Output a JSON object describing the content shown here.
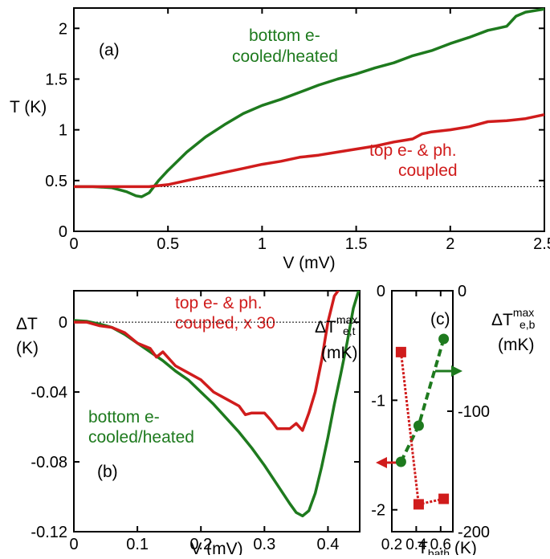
{
  "colors": {
    "green": "#1e7a1e",
    "red": "#d01c1c",
    "axis": "#000000"
  },
  "chart_data": [
    {
      "type": "line",
      "panel_label": "(a)",
      "xlabel": "V (mV)",
      "ylabel": "T (K)",
      "xlim": [
        0,
        2.5
      ],
      "ylim": [
        0,
        2.2
      ],
      "xticks": [
        0,
        0.5,
        1,
        1.5,
        2,
        2.5
      ],
      "xtick_labels": [
        "0",
        "0.5",
        "1",
        "1.5",
        "2",
        "2.5"
      ],
      "yticks": [
        0,
        0.5,
        1,
        1.5,
        2
      ],
      "ytick_labels": [
        "0",
        "0.5",
        "1",
        "1.5",
        "2"
      ],
      "reference_line": 0.44,
      "series": [
        {
          "name_lines": [
            "bottom e-",
            "cooled/heated"
          ],
          "color": "green",
          "x": [
            0,
            0.1,
            0.2,
            0.28,
            0.33,
            0.36,
            0.4,
            0.45,
            0.5,
            0.6,
            0.7,
            0.8,
            0.9,
            1.0,
            1.1,
            1.2,
            1.3,
            1.4,
            1.5,
            1.6,
            1.7,
            1.8,
            1.9,
            2.0,
            2.1,
            2.2,
            2.25,
            2.3,
            2.35,
            2.4,
            2.5
          ],
          "y": [
            0.44,
            0.44,
            0.43,
            0.39,
            0.35,
            0.34,
            0.38,
            0.5,
            0.6,
            0.78,
            0.93,
            1.05,
            1.16,
            1.24,
            1.3,
            1.37,
            1.44,
            1.5,
            1.55,
            1.61,
            1.66,
            1.73,
            1.78,
            1.85,
            1.91,
            1.98,
            2.0,
            2.02,
            2.12,
            2.16,
            2.19
          ]
        },
        {
          "name_lines": [
            "top e- & ph.",
            "coupled"
          ],
          "color": "red",
          "x": [
            0,
            0.2,
            0.4,
            0.5,
            0.6,
            0.7,
            0.8,
            0.9,
            1.0,
            1.1,
            1.2,
            1.3,
            1.4,
            1.5,
            1.6,
            1.7,
            1.8,
            1.85,
            1.9,
            2.0,
            2.1,
            2.2,
            2.3,
            2.4,
            2.5
          ],
          "y": [
            0.44,
            0.44,
            0.44,
            0.46,
            0.5,
            0.54,
            0.58,
            0.62,
            0.66,
            0.69,
            0.73,
            0.75,
            0.78,
            0.81,
            0.84,
            0.88,
            0.91,
            0.96,
            0.98,
            1.0,
            1.03,
            1.08,
            1.09,
            1.11,
            1.15
          ]
        }
      ]
    },
    {
      "type": "line",
      "panel_label": "(b)",
      "xlabel": "V (mV)",
      "ylabel_lines": [
        "ΔT",
        "(K)"
      ],
      "xlim": [
        0,
        0.45
      ],
      "ylim": [
        -0.12,
        0.018
      ],
      "xticks": [
        0,
        0.1,
        0.2,
        0.3,
        0.4
      ],
      "xtick_labels": [
        "0",
        "0.1",
        "0.2",
        "0.3",
        "0.4"
      ],
      "yticks": [
        0,
        -0.04,
        -0.08,
        -0.12
      ],
      "ytick_labels": [
        "0",
        "-0.04",
        "-0.08",
        "-0.12"
      ],
      "reference_line": 0,
      "series": [
        {
          "name_lines": [
            "bottom e-",
            "cooled/heated"
          ],
          "color": "green",
          "x": [
            0,
            0.02,
            0.04,
            0.06,
            0.08,
            0.1,
            0.12,
            0.14,
            0.16,
            0.18,
            0.2,
            0.22,
            0.24,
            0.26,
            0.28,
            0.3,
            0.32,
            0.34,
            0.35,
            0.36,
            0.37,
            0.38,
            0.39,
            0.4,
            0.41,
            0.42,
            0.43,
            0.44,
            0.45
          ],
          "y": [
            0.001,
            0.0005,
            -0.001,
            -0.003,
            -0.007,
            -0.012,
            -0.017,
            -0.022,
            -0.028,
            -0.033,
            -0.04,
            -0.047,
            -0.055,
            -0.063,
            -0.072,
            -0.082,
            -0.093,
            -0.104,
            -0.109,
            -0.111,
            -0.108,
            -0.098,
            -0.083,
            -0.066,
            -0.047,
            -0.03,
            -0.012,
            0.008,
            0.02
          ]
        },
        {
          "name_lines": [
            "top e- & ph.",
            "coupled, x 30"
          ],
          "color": "red",
          "x": [
            0,
            0.02,
            0.04,
            0.06,
            0.08,
            0.1,
            0.12,
            0.13,
            0.14,
            0.16,
            0.18,
            0.2,
            0.22,
            0.24,
            0.26,
            0.27,
            0.28,
            0.29,
            0.3,
            0.31,
            0.32,
            0.33,
            0.34,
            0.35,
            0.36,
            0.37,
            0.38,
            0.39,
            0.4,
            0.41,
            0.42
          ],
          "y": [
            0.0,
            0.0,
            -0.002,
            -0.003,
            -0.006,
            -0.012,
            -0.015,
            -0.02,
            -0.017,
            -0.025,
            -0.029,
            -0.033,
            -0.04,
            -0.044,
            -0.048,
            -0.053,
            -0.052,
            -0.052,
            -0.052,
            -0.056,
            -0.061,
            -0.061,
            -0.061,
            -0.058,
            -0.062,
            -0.052,
            -0.04,
            -0.022,
            0.0,
            0.015,
            0.02
          ]
        }
      ]
    },
    {
      "type": "scatter",
      "panel_label": "(c)",
      "xlabel_main": "T",
      "xlabel_sub": "bath",
      "xlabel_unit": " (K)",
      "xlim": [
        0.2,
        0.7
      ],
      "xticks": [
        0.2,
        0.4,
        0.6
      ],
      "xtick_labels": [
        "0.2",
        "0.4",
        "0.6"
      ],
      "left_axis": {
        "ylim": [
          -2.2,
          0
        ],
        "yticks": [
          0,
          -1,
          -2
        ],
        "ytick_labels": [
          "0",
          "-1",
          "-2"
        ],
        "label_main": "ΔT",
        "label_sup": "max",
        "label_sub": "e,t",
        "label_unit": "(mK)"
      },
      "right_axis": {
        "ylim": [
          -200,
          0
        ],
        "yticks": [
          0,
          -100,
          -200
        ],
        "ytick_labels": [
          "0",
          "-100",
          "-200"
        ],
        "label_main": "ΔT",
        "label_sup": "max",
        "label_sub": "e,b",
        "label_unit": "(mK)"
      },
      "series": [
        {
          "color": "green",
          "axis": "right",
          "marker": "circle",
          "style": "dashed",
          "x": [
            0.275,
            0.42,
            0.625
          ],
          "y": [
            -142,
            -112,
            -40
          ]
        },
        {
          "color": "red",
          "axis": "left",
          "marker": "square",
          "style": "dotted",
          "x": [
            0.275,
            0.42,
            0.625
          ],
          "y": [
            -0.56,
            -1.95,
            -1.9
          ]
        }
      ]
    }
  ]
}
